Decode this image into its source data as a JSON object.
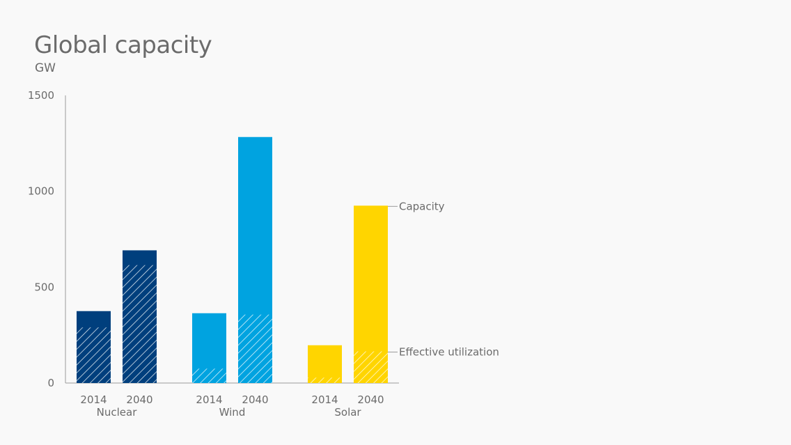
{
  "chart_data": {
    "type": "bar",
    "title": "Global capacity",
    "ylabel": "GW",
    "ylim": [
      0,
      1500
    ],
    "yticks": [
      0,
      500,
      1000,
      1500
    ],
    "grid": false,
    "groups": [
      {
        "name": "Nuclear",
        "color": "#003f7d",
        "bars": [
          {
            "year": "2014",
            "capacity": 375,
            "effective_utilization": 290
          },
          {
            "year": "2040",
            "capacity": 692,
            "effective_utilization": 615
          }
        ]
      },
      {
        "name": "Wind",
        "color": "#00a3e0",
        "bars": [
          {
            "year": "2014",
            "capacity": 364,
            "effective_utilization": 75
          },
          {
            "year": "2040",
            "capacity": 1283,
            "effective_utilization": 357
          }
        ]
      },
      {
        "name": "Solar",
        "color": "#ffd500",
        "bars": [
          {
            "year": "2014",
            "capacity": 197,
            "effective_utilization": 28
          },
          {
            "year": "2040",
            "capacity": 925,
            "effective_utilization": 165
          }
        ]
      }
    ],
    "annotations": {
      "capacity": "Capacity",
      "effective_utilization": "Effective utilization"
    }
  }
}
